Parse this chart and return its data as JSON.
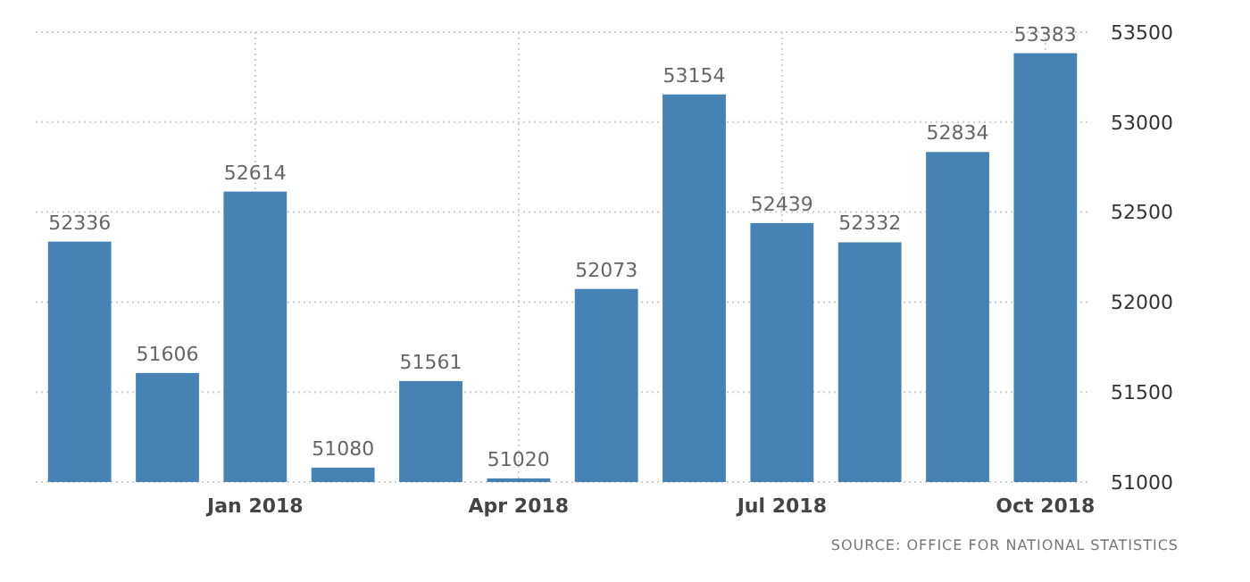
{
  "chart_data": {
    "type": "bar",
    "categories": [
      null,
      null,
      "Jan 2018",
      null,
      null,
      "Apr 2018",
      null,
      null,
      "Jul 2018",
      null,
      null,
      "Oct 2018"
    ],
    "values": [
      52336,
      51606,
      52614,
      51080,
      51561,
      51020,
      52073,
      53154,
      52439,
      52332,
      52834,
      53383
    ],
    "color": "#4682b4",
    "ylim": [
      51000,
      53500
    ],
    "yticks": [
      51000,
      51500,
      52000,
      52500,
      53000,
      53500
    ],
    "grid": true,
    "data_labels": true,
    "annotations": [
      "SOURCE: OFFICE FOR NATIONAL STATISTICS"
    ]
  }
}
